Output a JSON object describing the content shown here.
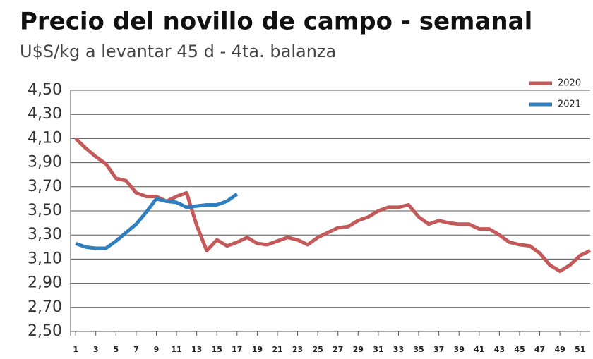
{
  "chart_data": {
    "type": "line",
    "title": "Precio del novillo de campo - semanal",
    "subtitle": "U$S/kg a levantar 45 d - 4ta. balanza",
    "x": [
      1,
      2,
      3,
      4,
      5,
      6,
      7,
      8,
      9,
      10,
      11,
      12,
      13,
      14,
      15,
      16,
      17,
      18,
      19,
      20,
      21,
      22,
      23,
      24,
      25,
      26,
      27,
      28,
      29,
      30,
      31,
      32,
      33,
      34,
      35,
      36,
      37,
      38,
      39,
      40,
      41,
      42,
      43,
      44,
      45,
      46,
      47,
      48,
      49,
      50,
      51,
      52
    ],
    "xlim": [
      0.5,
      52
    ],
    "xticks": [
      1,
      3,
      5,
      7,
      9,
      11,
      13,
      15,
      17,
      19,
      21,
      23,
      25,
      27,
      29,
      31,
      33,
      35,
      37,
      39,
      41,
      43,
      45,
      47,
      49,
      51
    ],
    "ylim": [
      2.5,
      4.5
    ],
    "yticks": [
      {
        "value": 2.5,
        "label": "2,50"
      },
      {
        "value": 2.7,
        "label": "2,70"
      },
      {
        "value": 2.9,
        "label": "2,90"
      },
      {
        "value": 3.1,
        "label": "3,10"
      },
      {
        "value": 3.3,
        "label": "3,30"
      },
      {
        "value": 3.5,
        "label": "3,50"
      },
      {
        "value": 3.7,
        "label": "3,70"
      },
      {
        "value": 3.9,
        "label": "3,90"
      },
      {
        "value": 4.1,
        "label": "4,10"
      },
      {
        "value": 4.3,
        "label": "4,30"
      },
      {
        "value": 4.5,
        "label": "4,50"
      }
    ],
    "grid": true,
    "legend": "top-right",
    "series": [
      {
        "name": "2020",
        "color": "#c4595a",
        "values": [
          4.1,
          4.02,
          3.95,
          3.89,
          3.77,
          3.75,
          3.65,
          3.62,
          3.62,
          3.58,
          3.62,
          3.65,
          3.38,
          3.17,
          3.26,
          3.21,
          3.24,
          3.28,
          3.23,
          3.22,
          3.25,
          3.28,
          3.26,
          3.22,
          3.28,
          3.32,
          3.36,
          3.37,
          3.42,
          3.45,
          3.5,
          3.53,
          3.53,
          3.55,
          3.45,
          3.39,
          3.42,
          3.4,
          3.39,
          3.39,
          3.35,
          3.35,
          3.3,
          3.24,
          3.22,
          3.21,
          3.15,
          3.05,
          3.0,
          3.05,
          3.13,
          3.17
        ]
      },
      {
        "name": "2021",
        "color": "#2f7fc1",
        "values": [
          3.23,
          3.2,
          3.19,
          3.19,
          3.25,
          3.32,
          3.39,
          3.49,
          3.6,
          3.58,
          3.57,
          3.53,
          3.54,
          3.55,
          3.55,
          3.58,
          3.64,
          null,
          null,
          null,
          null,
          null,
          null,
          null,
          null,
          null,
          null,
          null,
          null,
          null,
          null,
          null,
          null,
          null,
          null,
          null,
          null,
          null,
          null,
          null,
          null,
          null,
          null,
          null,
          null,
          null,
          null,
          null,
          null,
          null,
          null,
          null
        ]
      }
    ]
  }
}
